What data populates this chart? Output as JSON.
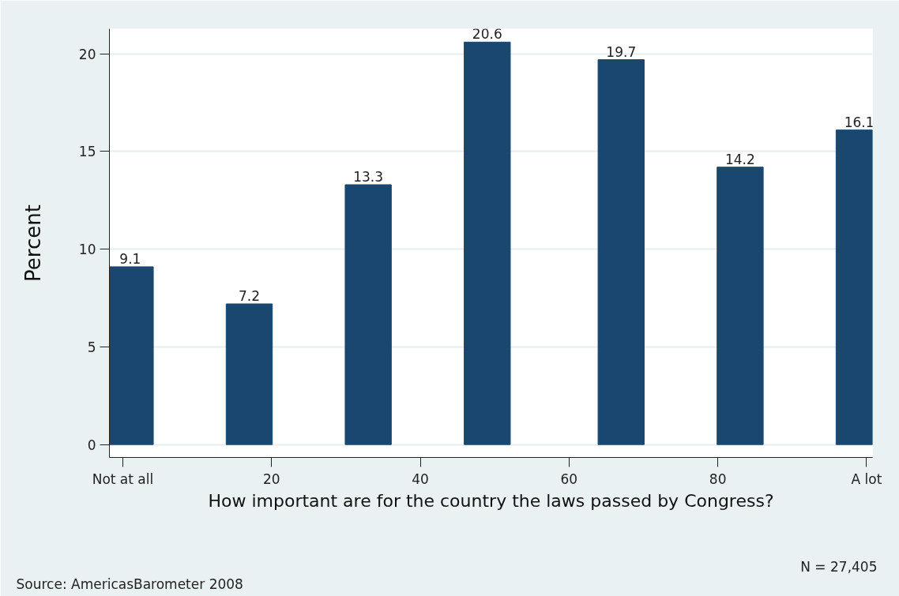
{
  "chart_data": {
    "type": "bar",
    "xlabel": "How important are for the country the laws passed by Congress?",
    "ylabel": "Percent",
    "x": [
      1,
      17,
      33,
      49,
      67,
      83,
      99
    ],
    "values": [
      9.1,
      7.2,
      13.3,
      20.6,
      19.7,
      14.2,
      16.1
    ],
    "color": "#1a476f",
    "data_labels": true,
    "xlim": [
      -1.8,
      100.8
    ],
    "xticks": [
      {
        "value": 0,
        "label": "Not at all"
      },
      20,
      40,
      60,
      80,
      {
        "value": 100,
        "label": "A lot"
      }
    ],
    "ylim": [
      -0.66,
      21.28
    ],
    "yticks": [
      0,
      5,
      10,
      15,
      20
    ],
    "grid": "y",
    "annotations": [
      "Source: AmericasBarometer 2008",
      "N = 27,405"
    ]
  }
}
